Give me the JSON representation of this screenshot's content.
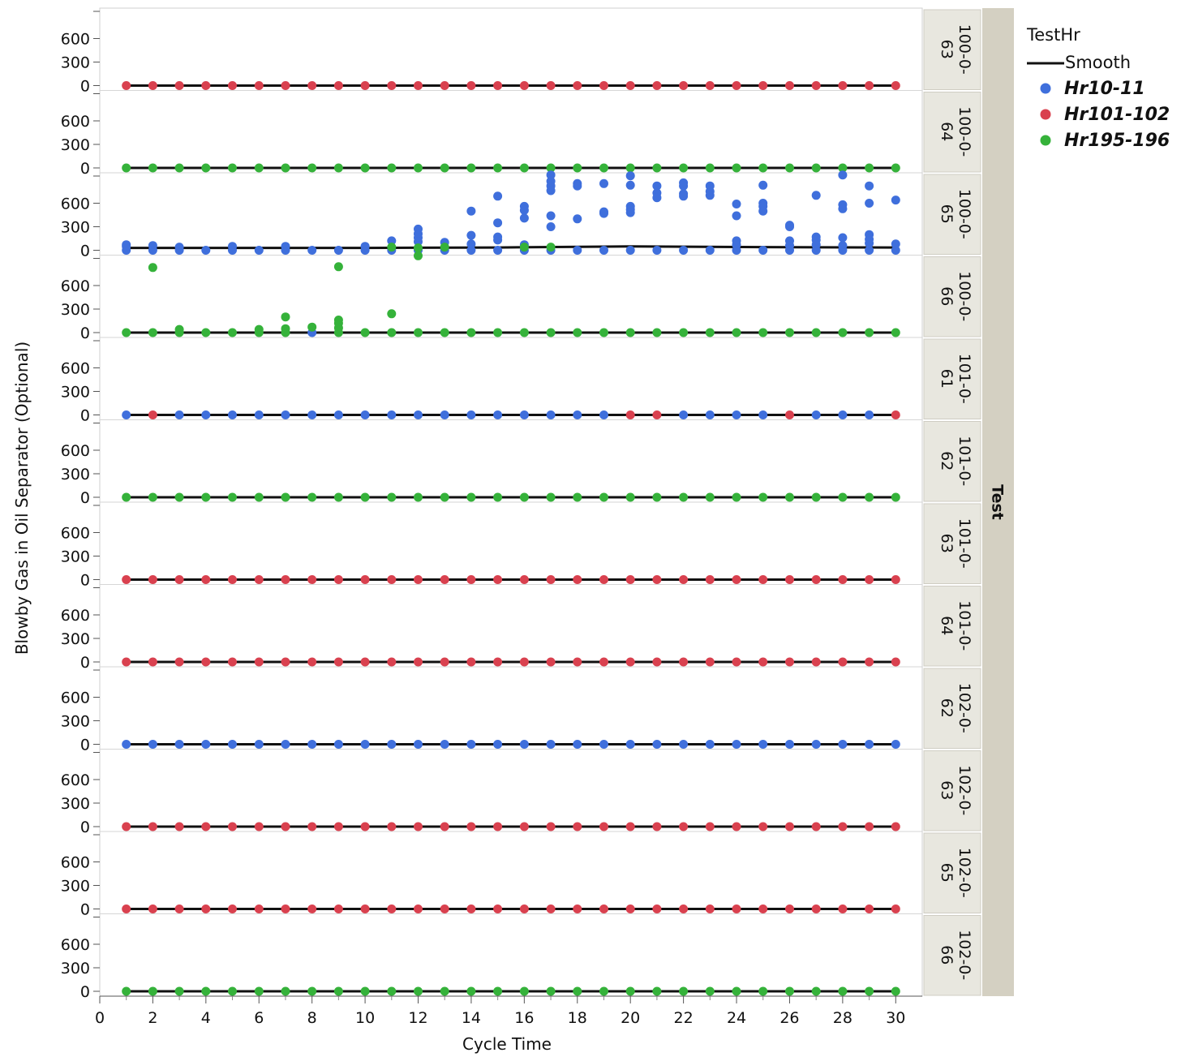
{
  "chart_data": {
    "type": "scatter",
    "title": "",
    "xlabel": "Cycle Time",
    "ylabel": "Blowby Gas in Oil Separator (Optional)",
    "xlim": [
      0,
      31
    ],
    "ylim": [
      0,
      900
    ],
    "x_ticks": [
      0,
      2,
      4,
      6,
      8,
      10,
      12,
      14,
      16,
      18,
      20,
      22,
      24,
      26,
      28,
      30
    ],
    "y_ticks": [
      0,
      300,
      600
    ],
    "grid": false,
    "facet_label": "Test",
    "legend": {
      "title": "TestHr",
      "placement": "right",
      "items": [
        {
          "name": "Smooth",
          "kind": "line",
          "color": "#111111"
        },
        {
          "name": "Hr10-11",
          "kind": "marker",
          "color": "#3f6fdc"
        },
        {
          "name": "Hr101-102",
          "kind": "marker",
          "color": "#d9414f"
        },
        {
          "name": "Hr195-196",
          "kind": "marker",
          "color": "#35b23a"
        }
      ]
    },
    "colors": {
      "Hr10-11": "#3f6fdc",
      "Hr101-102": "#d9414f",
      "Hr195-196": "#35b23a",
      "Smooth": "#111111"
    },
    "panels": [
      {
        "strip_line1": "100-0-",
        "strip_line2": "63",
        "base_series": "Hr101-102",
        "base_override": {},
        "extra_points": []
      },
      {
        "strip_line1": "100-0-",
        "strip_line2": "64",
        "base_series": "Hr195-196",
        "base_override": {},
        "extra_points": []
      },
      {
        "strip_line1": "100-0-",
        "strip_line2": "65",
        "base_series": "Hr10-11",
        "base_override": {},
        "smooth": [
          [
            1,
            30
          ],
          [
            10,
            30
          ],
          [
            15,
            35
          ],
          [
            20,
            50
          ],
          [
            25,
            40
          ],
          [
            30,
            35
          ]
        ],
        "extra_points": [
          {
            "s": "Hr10-11",
            "x": 1,
            "y": 70
          },
          {
            "s": "Hr10-11",
            "x": 1,
            "y": 50
          },
          {
            "s": "Hr10-11",
            "x": 2,
            "y": 60
          },
          {
            "s": "Hr10-11",
            "x": 3,
            "y": 40
          },
          {
            "s": "Hr10-11",
            "x": 5,
            "y": 50
          },
          {
            "s": "Hr10-11",
            "x": 7,
            "y": 50
          },
          {
            "s": "Hr10-11",
            "x": 10,
            "y": 50
          },
          {
            "s": "Hr10-11",
            "x": 11,
            "y": 120
          },
          {
            "s": "Hr10-11",
            "x": 12,
            "y": 270
          },
          {
            "s": "Hr10-11",
            "x": 12,
            "y": 210
          },
          {
            "s": "Hr10-11",
            "x": 12,
            "y": 160
          },
          {
            "s": "Hr10-11",
            "x": 12,
            "y": 110
          },
          {
            "s": "Hr10-11",
            "x": 13,
            "y": 100
          },
          {
            "s": "Hr10-11",
            "x": 14,
            "y": 500
          },
          {
            "s": "Hr10-11",
            "x": 14,
            "y": 190
          },
          {
            "s": "Hr10-11",
            "x": 14,
            "y": 80
          },
          {
            "s": "Hr10-11",
            "x": 15,
            "y": 690
          },
          {
            "s": "Hr10-11",
            "x": 15,
            "y": 350
          },
          {
            "s": "Hr10-11",
            "x": 15,
            "y": 170
          },
          {
            "s": "Hr10-11",
            "x": 15,
            "y": 130
          },
          {
            "s": "Hr10-11",
            "x": 16,
            "y": 560
          },
          {
            "s": "Hr10-11",
            "x": 16,
            "y": 510
          },
          {
            "s": "Hr10-11",
            "x": 16,
            "y": 410
          },
          {
            "s": "Hr10-11",
            "x": 16,
            "y": 70
          },
          {
            "s": "Hr10-11",
            "x": 17,
            "y": 960
          },
          {
            "s": "Hr10-11",
            "x": 17,
            "y": 880
          },
          {
            "s": "Hr10-11",
            "x": 17,
            "y": 820
          },
          {
            "s": "Hr10-11",
            "x": 17,
            "y": 760
          },
          {
            "s": "Hr10-11",
            "x": 17,
            "y": 440
          },
          {
            "s": "Hr10-11",
            "x": 17,
            "y": 300
          },
          {
            "s": "Hr10-11",
            "x": 18,
            "y": 850
          },
          {
            "s": "Hr10-11",
            "x": 18,
            "y": 820
          },
          {
            "s": "Hr10-11",
            "x": 18,
            "y": 400
          },
          {
            "s": "Hr10-11",
            "x": 19,
            "y": 850
          },
          {
            "s": "Hr10-11",
            "x": 19,
            "y": 490
          },
          {
            "s": "Hr10-11",
            "x": 19,
            "y": 470
          },
          {
            "s": "Hr10-11",
            "x": 20,
            "y": 950
          },
          {
            "s": "Hr10-11",
            "x": 20,
            "y": 830
          },
          {
            "s": "Hr10-11",
            "x": 20,
            "y": 560
          },
          {
            "s": "Hr10-11",
            "x": 20,
            "y": 520
          },
          {
            "s": "Hr10-11",
            "x": 20,
            "y": 480
          },
          {
            "s": "Hr10-11",
            "x": 21,
            "y": 820
          },
          {
            "s": "Hr10-11",
            "x": 21,
            "y": 730
          },
          {
            "s": "Hr10-11",
            "x": 21,
            "y": 670
          },
          {
            "s": "Hr10-11",
            "x": 22,
            "y": 860
          },
          {
            "s": "Hr10-11",
            "x": 22,
            "y": 820
          },
          {
            "s": "Hr10-11",
            "x": 22,
            "y": 720
          },
          {
            "s": "Hr10-11",
            "x": 22,
            "y": 690
          },
          {
            "s": "Hr10-11",
            "x": 23,
            "y": 820
          },
          {
            "s": "Hr10-11",
            "x": 23,
            "y": 750
          },
          {
            "s": "Hr10-11",
            "x": 23,
            "y": 700
          },
          {
            "s": "Hr10-11",
            "x": 24,
            "y": 590
          },
          {
            "s": "Hr10-11",
            "x": 24,
            "y": 440
          },
          {
            "s": "Hr10-11",
            "x": 24,
            "y": 120
          },
          {
            "s": "Hr10-11",
            "x": 24,
            "y": 70
          },
          {
            "s": "Hr10-11",
            "x": 25,
            "y": 830
          },
          {
            "s": "Hr10-11",
            "x": 25,
            "y": 600
          },
          {
            "s": "Hr10-11",
            "x": 25,
            "y": 560
          },
          {
            "s": "Hr10-11",
            "x": 25,
            "y": 500
          },
          {
            "s": "Hr10-11",
            "x": 26,
            "y": 320
          },
          {
            "s": "Hr10-11",
            "x": 26,
            "y": 300
          },
          {
            "s": "Hr10-11",
            "x": 26,
            "y": 120
          },
          {
            "s": "Hr10-11",
            "x": 26,
            "y": 60
          },
          {
            "s": "Hr10-11",
            "x": 27,
            "y": 700
          },
          {
            "s": "Hr10-11",
            "x": 27,
            "y": 170
          },
          {
            "s": "Hr10-11",
            "x": 27,
            "y": 130
          },
          {
            "s": "Hr10-11",
            "x": 27,
            "y": 70
          },
          {
            "s": "Hr10-11",
            "x": 28,
            "y": 960
          },
          {
            "s": "Hr10-11",
            "x": 28,
            "y": 580
          },
          {
            "s": "Hr10-11",
            "x": 28,
            "y": 530
          },
          {
            "s": "Hr10-11",
            "x": 28,
            "y": 160
          },
          {
            "s": "Hr10-11",
            "x": 28,
            "y": 60
          },
          {
            "s": "Hr10-11",
            "x": 29,
            "y": 820
          },
          {
            "s": "Hr10-11",
            "x": 29,
            "y": 600
          },
          {
            "s": "Hr10-11",
            "x": 29,
            "y": 200
          },
          {
            "s": "Hr10-11",
            "x": 29,
            "y": 140
          },
          {
            "s": "Hr10-11",
            "x": 29,
            "y": 90
          },
          {
            "s": "Hr10-11",
            "x": 30,
            "y": 640
          },
          {
            "s": "Hr10-11",
            "x": 30,
            "y": 80
          },
          {
            "s": "Hr195-196",
            "x": 11,
            "y": 40
          },
          {
            "s": "Hr195-196",
            "x": 12,
            "y": 30
          },
          {
            "s": "Hr195-196",
            "x": 12,
            "y": -70
          },
          {
            "s": "Hr195-196",
            "x": 13,
            "y": 40
          },
          {
            "s": "Hr195-196",
            "x": 16,
            "y": 40
          },
          {
            "s": "Hr195-196",
            "x": 17,
            "y": 40
          }
        ]
      },
      {
        "strip_line1": "100-0-",
        "strip_line2": "66",
        "base_series": "Hr195-196",
        "base_override": {
          "8": "Hr10-11"
        },
        "extra_points": [
          {
            "s": "Hr195-196",
            "x": 2,
            "y": 830
          },
          {
            "s": "Hr195-196",
            "x": 9,
            "y": 840
          },
          {
            "s": "Hr195-196",
            "x": 7,
            "y": 200
          },
          {
            "s": "Hr195-196",
            "x": 7,
            "y": 50
          },
          {
            "s": "Hr195-196",
            "x": 8,
            "y": 70
          },
          {
            "s": "Hr195-196",
            "x": 9,
            "y": 160
          },
          {
            "s": "Hr195-196",
            "x": 9,
            "y": 120
          },
          {
            "s": "Hr195-196",
            "x": 9,
            "y": 60
          },
          {
            "s": "Hr195-196",
            "x": 11,
            "y": 240
          },
          {
            "s": "Hr195-196",
            "x": 6,
            "y": 40
          },
          {
            "s": "Hr195-196",
            "x": 3,
            "y": 40
          }
        ]
      },
      {
        "strip_line1": "101-0-",
        "strip_line2": "61",
        "base_series": "Hr10-11",
        "base_override": {
          "2": "Hr101-102",
          "20": "Hr101-102",
          "21": "Hr101-102",
          "26": "Hr101-102",
          "30": "Hr101-102"
        },
        "extra_points": []
      },
      {
        "strip_line1": "101-0-",
        "strip_line2": "62",
        "base_series": "Hr195-196",
        "base_override": {},
        "extra_points": []
      },
      {
        "strip_line1": "101-0-",
        "strip_line2": "63",
        "base_series": "Hr101-102",
        "base_override": {},
        "extra_points": []
      },
      {
        "strip_line1": "101-0-",
        "strip_line2": "64",
        "base_series": "Hr101-102",
        "base_override": {},
        "extra_points": []
      },
      {
        "strip_line1": "102-0-",
        "strip_line2": "62",
        "base_series": "Hr10-11",
        "base_override": {},
        "extra_points": []
      },
      {
        "strip_line1": "102-0-",
        "strip_line2": "63",
        "base_series": "Hr101-102",
        "base_override": {},
        "extra_points": []
      },
      {
        "strip_line1": "102-0-",
        "strip_line2": "65",
        "base_series": "Hr101-102",
        "base_override": {},
        "extra_points": []
      },
      {
        "strip_line1": "102-0-",
        "strip_line2": "66",
        "base_series": "Hr195-196",
        "base_override": {},
        "extra_points": []
      }
    ]
  }
}
